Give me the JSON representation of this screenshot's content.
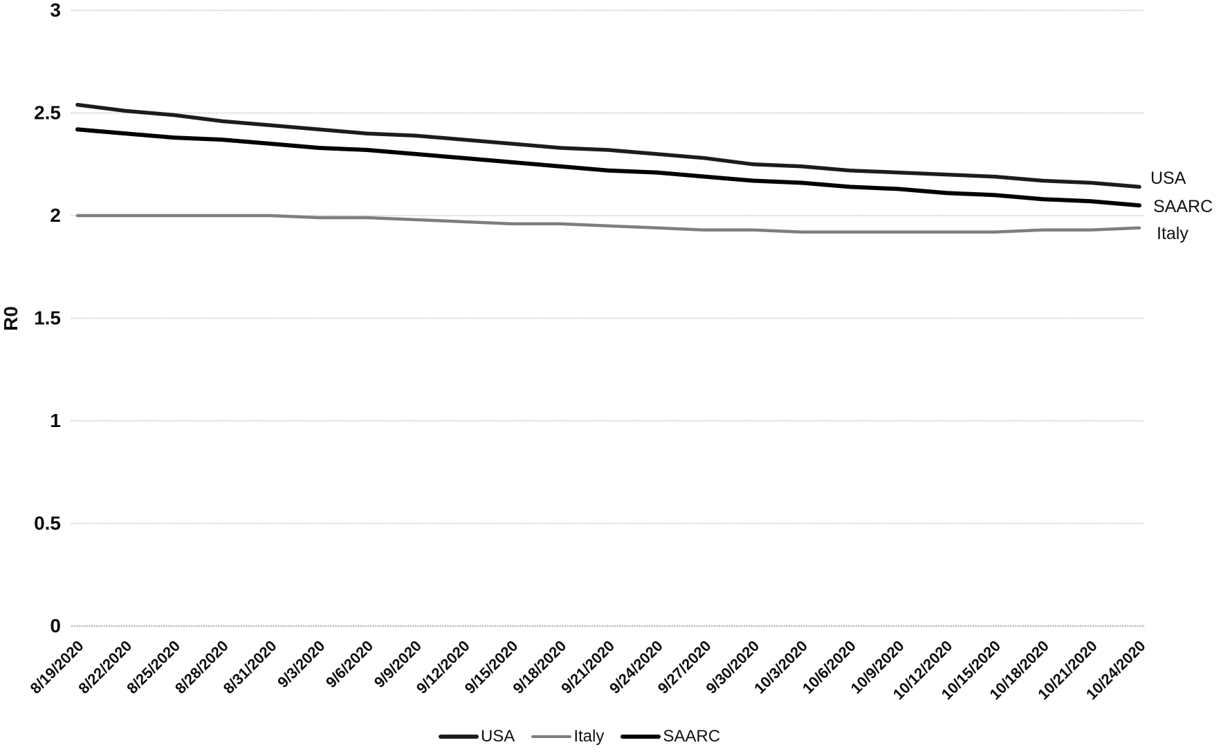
{
  "chart_data": {
    "type": "line",
    "title": "",
    "xlabel": "",
    "ylabel": "R0",
    "ylim": [
      0,
      3
    ],
    "yticks": [
      0,
      0.5,
      1,
      1.5,
      2,
      2.5,
      3
    ],
    "ytick_labels": [
      "0",
      "0.5",
      "1",
      "1.5",
      "2",
      "2.5",
      "3"
    ],
    "grid": true,
    "grid_color": "#c3c3c3",
    "background_color": "#ffffff",
    "x": [
      "8/19/2020",
      "8/22/2020",
      "8/25/2020",
      "8/28/2020",
      "8/31/2020",
      "9/3/2020",
      "9/6/2020",
      "9/9/2020",
      "9/12/2020",
      "9/15/2020",
      "9/18/2020",
      "9/21/2020",
      "9/24/2020",
      "9/27/2020",
      "9/30/2020",
      "10/3/2020",
      "10/6/2020",
      "10/9/2020",
      "10/12/2020",
      "10/15/2020",
      "10/18/2020",
      "10/21/2020",
      "10/24/2020"
    ],
    "series": [
      {
        "name": "USA",
        "color": "#1c1c1c",
        "line_width": 5.5,
        "values": [
          2.54,
          2.51,
          2.49,
          2.46,
          2.44,
          2.42,
          2.4,
          2.39,
          2.37,
          2.35,
          2.33,
          2.32,
          2.3,
          2.28,
          2.25,
          2.24,
          2.22,
          2.21,
          2.2,
          2.19,
          2.17,
          2.16,
          2.14
        ]
      },
      {
        "name": "Italy",
        "color": "#7e7e7e",
        "line_width": 4.5,
        "values": [
          2.0,
          2.0,
          2.0,
          2.0,
          2.0,
          1.99,
          1.99,
          1.98,
          1.97,
          1.96,
          1.96,
          1.95,
          1.94,
          1.93,
          1.93,
          1.92,
          1.92,
          1.92,
          1.92,
          1.92,
          1.93,
          1.93,
          1.94
        ]
      },
      {
        "name": "SAARC",
        "color": "#000000",
        "line_width": 6,
        "values": [
          2.42,
          2.4,
          2.38,
          2.37,
          2.35,
          2.33,
          2.32,
          2.3,
          2.28,
          2.26,
          2.24,
          2.22,
          2.21,
          2.19,
          2.17,
          2.16,
          2.14,
          2.13,
          2.11,
          2.1,
          2.08,
          2.07,
          2.05
        ]
      }
    ],
    "right_labels": [
      {
        "series": "USA",
        "x": 1663,
        "y": 266
      },
      {
        "series": "SAARC",
        "x": 1667,
        "y": 307
      },
      {
        "series": "Italy",
        "x": 1672,
        "y": 346
      }
    ],
    "legend": {
      "position": "bottom",
      "entries": [
        "USA",
        "Italy",
        "SAARC"
      ]
    }
  }
}
